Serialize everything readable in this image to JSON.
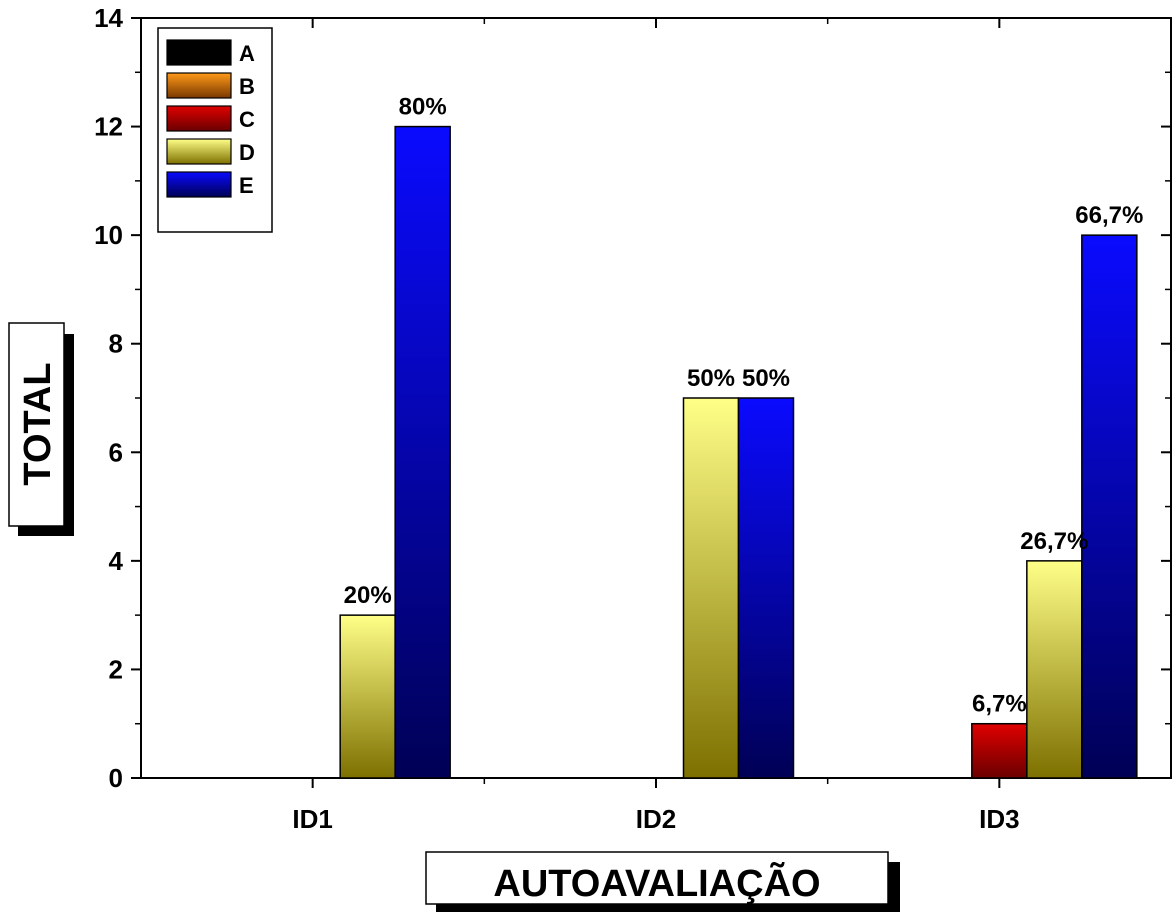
{
  "chart_data": {
    "type": "bar",
    "title": "",
    "xlabel": "AUTOAVALIAÇÃO",
    "ylabel": "TOTAL",
    "categories": [
      "ID1",
      "ID2",
      "ID3"
    ],
    "ylim": [
      0,
      14
    ],
    "yticks": [
      0,
      2,
      4,
      6,
      8,
      10,
      12,
      14
    ],
    "grid": false,
    "legend_position": "top-left",
    "series": [
      {
        "name": "A",
        "color_top": "#000000",
        "color_bottom": "#000000",
        "values": [
          0,
          0,
          0
        ],
        "labels": [
          "",
          "",
          ""
        ]
      },
      {
        "name": "B",
        "color_top": "#ff9a1a",
        "color_bottom": "#7a3800",
        "values": [
          0,
          0,
          0
        ],
        "labels": [
          "",
          "",
          ""
        ]
      },
      {
        "name": "C",
        "color_top": "#e00000",
        "color_bottom": "#6a0000",
        "values": [
          0,
          0,
          1
        ],
        "labels": [
          "",
          "",
          "6,7%"
        ]
      },
      {
        "name": "D",
        "color_top": "#ffff88",
        "color_bottom": "#7d7000",
        "values": [
          3,
          7,
          4
        ],
        "labels": [
          "20%",
          "50%",
          "26,7%"
        ]
      },
      {
        "name": "E",
        "color_top": "#0a0aff",
        "color_bottom": "#000055",
        "values": [
          12,
          7,
          10
        ],
        "labels": [
          "80%",
          "50%",
          "66,7%"
        ]
      }
    ]
  }
}
